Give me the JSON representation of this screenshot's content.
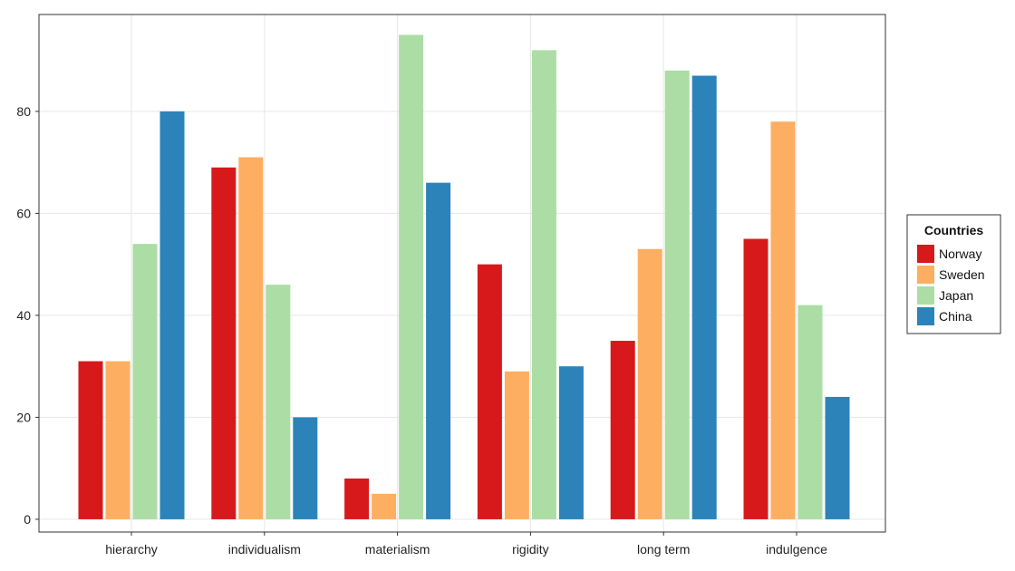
{
  "chart_data": {
    "type": "bar",
    "categories": [
      "hierarchy",
      "individualism",
      "materialism",
      "rigidity",
      "long term",
      "indulgence"
    ],
    "series": [
      {
        "name": "Norway",
        "color": "#d7191c",
        "values": [
          31,
          69,
          8,
          50,
          35,
          55
        ]
      },
      {
        "name": "Sweden",
        "color": "#fdae61",
        "values": [
          31,
          71,
          5,
          29,
          53,
          78
        ]
      },
      {
        "name": "Japan",
        "color": "#abdda4",
        "values": [
          54,
          46,
          95,
          92,
          88,
          42
        ]
      },
      {
        "name": "China",
        "color": "#2b83ba",
        "values": [
          80,
          20,
          66,
          30,
          87,
          24
        ]
      }
    ],
    "yticks": [
      0,
      20,
      40,
      60,
      80
    ],
    "ylim": [
      -2.5,
      99
    ],
    "grid": true,
    "legend": {
      "title": "Countries",
      "position": "right"
    }
  }
}
